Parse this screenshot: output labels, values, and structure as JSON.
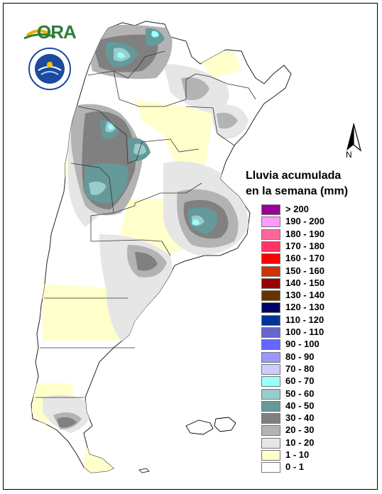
{
  "logo": {
    "text": "ORA",
    "icon": "ora-sun-logo-icon"
  },
  "seal": {
    "icon": "weather-service-seal-icon",
    "text": "SERVICIO METEOROLÓGICO NACIONAL · ARGENTINA"
  },
  "north_arrow": {
    "icon": "north-arrow-icon",
    "letter": "N"
  },
  "legend": {
    "title_line1": "Lluvia acumulada",
    "title_line2": "en la semana (mm)",
    "items": [
      {
        "label": "> 200",
        "color": "#990099"
      },
      {
        "label": "190 - 200",
        "color": "#ff99ff"
      },
      {
        "label": "180 - 190",
        "color": "#ff6699"
      },
      {
        "label": "170 - 180",
        "color": "#ff3366"
      },
      {
        "label": "160 - 170",
        "color": "#ff0000"
      },
      {
        "label": "150 - 160",
        "color": "#cc3300"
      },
      {
        "label": "140 - 150",
        "color": "#990000"
      },
      {
        "label": "130 - 140",
        "color": "#663300"
      },
      {
        "label": "120 - 130",
        "color": "#000066"
      },
      {
        "label": "110 - 120",
        "color": "#003399"
      },
      {
        "label": "100 - 110",
        "color": "#6666cc"
      },
      {
        "label": "90 - 100",
        "color": "#6666ff"
      },
      {
        "label": "80 - 90",
        "color": "#9999ff"
      },
      {
        "label": "70 - 80",
        "color": "#ccccff"
      },
      {
        "label": "60 - 70",
        "color": "#99ffff"
      },
      {
        "label": "50 - 60",
        "color": "#99cccc"
      },
      {
        "label": "40 - 50",
        "color": "#669999"
      },
      {
        "label": "30 - 40",
        "color": "#808080"
      },
      {
        "label": "20 - 30",
        "color": "#b3b3b3"
      },
      {
        "label": "10 - 20",
        "color": "#e6e6e6"
      },
      {
        "label": "1 - 10",
        "color": "#ffffcc"
      },
      {
        "label": "0 - 1",
        "color": "#ffffff"
      }
    ]
  }
}
